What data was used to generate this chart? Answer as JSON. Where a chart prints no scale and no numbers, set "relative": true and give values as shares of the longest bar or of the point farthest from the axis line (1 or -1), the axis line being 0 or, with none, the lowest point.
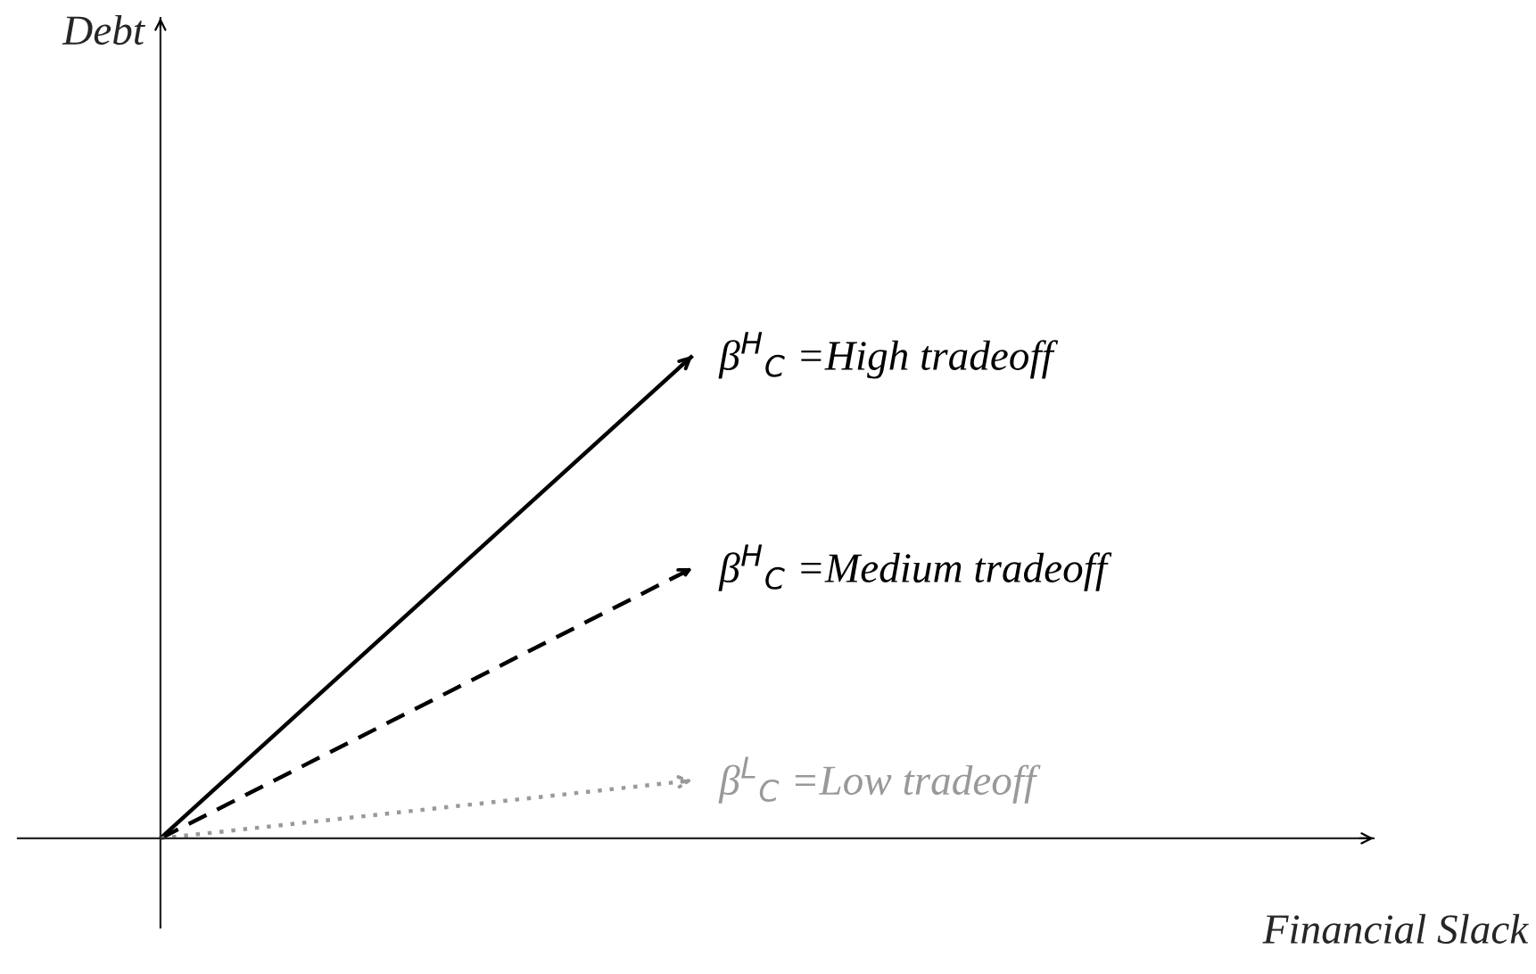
{
  "chart_data": {
    "type": "line",
    "relative": true,
    "xlabel": "Financial Slack",
    "annotations": [
      "Debt"
    ],
    "categories": [
      null,
      null
    ],
    "series": [
      {
        "name": "β$^{H}$$_{C}$ =High tradeoff",
        "color": "#000000",
        "line_style": "solid",
        "values": [
          0,
          1
        ]
      },
      {
        "name": "β$^{H}$$_{C}$ =Medium tradeoff",
        "color": "#000000",
        "line_style": "dashed",
        "values": [
          0,
          0.56
        ]
      },
      {
        "name": "β$^{L}$$_{C}$ =Low tradeoff",
        "color": "#999999",
        "line_style": "dotted",
        "values": [
          0,
          0.12
        ]
      }
    ],
    "legend": "right"
  }
}
